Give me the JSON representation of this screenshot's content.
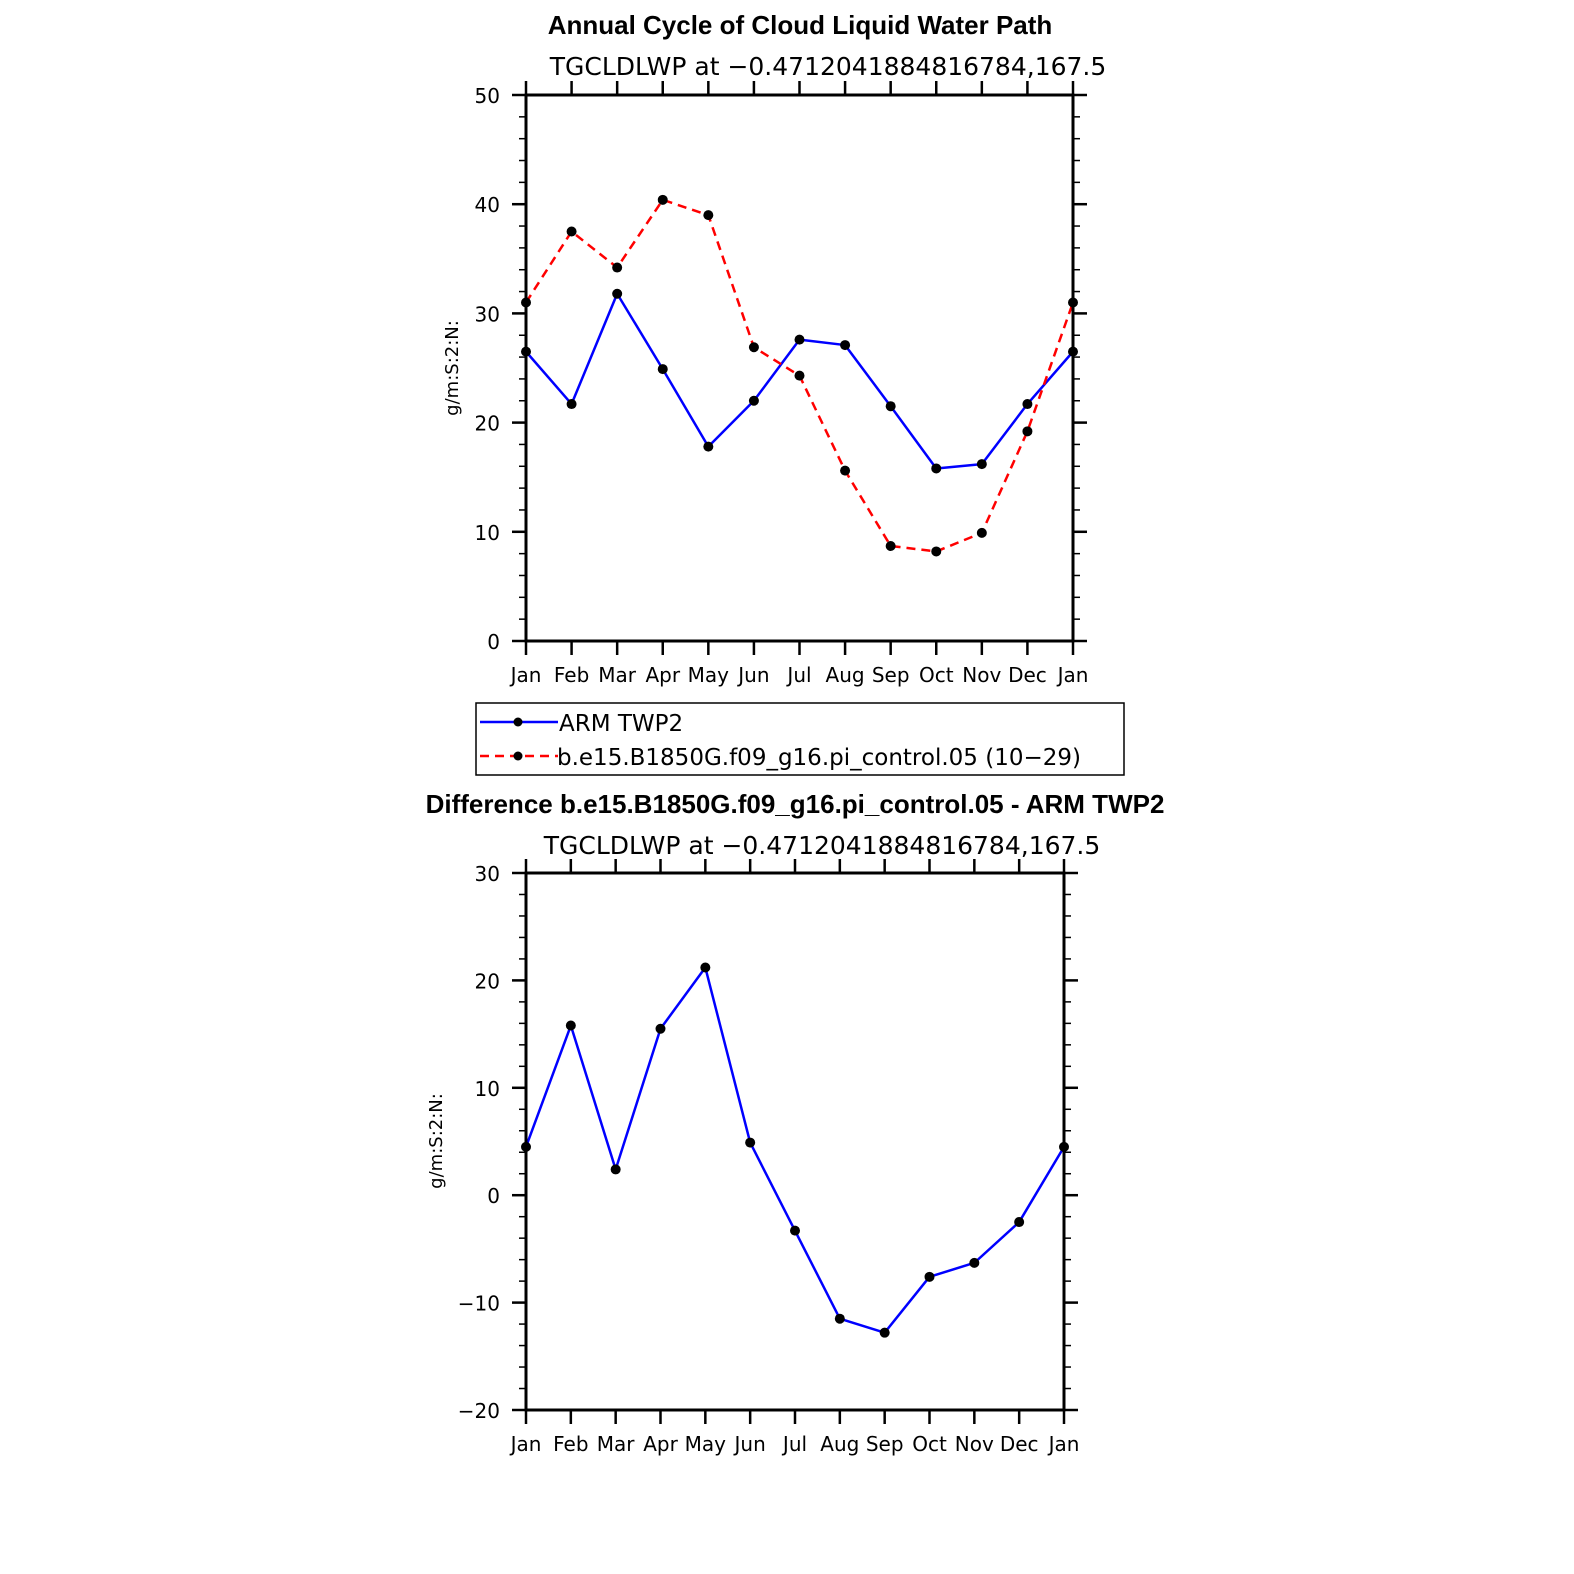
{
  "chart_data": [
    {
      "type": "line",
      "title": "Annual Cycle of Cloud Liquid Water Path",
      "subtitle": "TGCLDLWP at −0.4712041884816784,167.5",
      "ylabel": "g/m:S:2:N:",
      "xlabel": "",
      "ylim": [
        0,
        50
      ],
      "yticks": [
        0,
        10,
        20,
        30,
        40,
        50
      ],
      "yticks_labels": [
        "0",
        "10",
        "20",
        "30",
        "40",
        "50"
      ],
      "categories": [
        "Jan",
        "Feb",
        "Mar",
        "Apr",
        "May",
        "Jun",
        "Jul",
        "Aug",
        "Sep",
        "Oct",
        "Nov",
        "Dec",
        "Jan"
      ],
      "series": [
        {
          "name": "ARM TWP2",
          "color": "#0000ff",
          "dash": "solid",
          "values": [
            26.5,
            21.7,
            31.8,
            24.9,
            17.8,
            22.0,
            27.6,
            27.1,
            21.5,
            15.8,
            16.2,
            21.7,
            26.5
          ]
        },
        {
          "name": "b.e15.B1850G.f09_g16.pi_control.05 (10−29)",
          "color": "#ff0000",
          "dash": "dashed",
          "values": [
            31.0,
            37.5,
            34.2,
            40.4,
            39.0,
            26.9,
            24.3,
            15.6,
            8.7,
            8.2,
            9.9,
            19.2,
            31.0
          ]
        }
      ],
      "legend": {
        "placement": "below"
      }
    },
    {
      "type": "line",
      "title": "Difference b.e15.B1850G.f09_g16.pi_control.05 - ARM TWP2",
      "subtitle": "TGCLDLWP at −0.4712041884816784,167.5",
      "ylabel": "g/m:S:2:N:",
      "xlabel": "",
      "ylim": [
        -20,
        30
      ],
      "yticks": [
        -20,
        -10,
        0,
        10,
        20,
        30
      ],
      "yticks_labels": [
        "−20",
        "−10",
        "0",
        "10",
        "20",
        "30"
      ],
      "categories": [
        "Jan",
        "Feb",
        "Mar",
        "Apr",
        "May",
        "Jun",
        "Jul",
        "Aug",
        "Sep",
        "Oct",
        "Nov",
        "Dec",
        "Jan"
      ],
      "series": [
        {
          "name": "Difference",
          "color": "#0000ff",
          "dash": "solid",
          "values": [
            4.5,
            15.8,
            2.4,
            15.5,
            21.2,
            4.9,
            -3.3,
            -11.5,
            -12.8,
            -7.6,
            -6.3,
            -2.5,
            4.5
          ]
        }
      ]
    }
  ]
}
